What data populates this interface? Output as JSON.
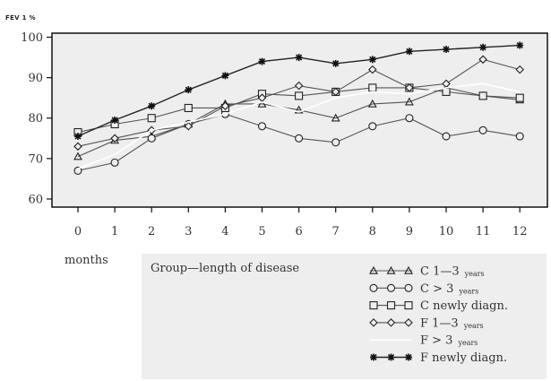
{
  "chart_data": {
    "type": "line",
    "ylabel": "FEV 1 %",
    "xlabel": "months",
    "categories": [
      "0",
      "1",
      "2",
      "3",
      "4",
      "5",
      "6",
      "7",
      "8",
      "9",
      "10",
      "11",
      "12"
    ],
    "y_ticks": [
      "60",
      "70",
      "80",
      "90",
      "100"
    ],
    "ylim": [
      58,
      101
    ],
    "grid": false,
    "legend_title": "Group—length of disease",
    "legend_position": "bottom-right",
    "series": [
      {
        "key": "c13",
        "name": "C 1—3",
        "name_main": "C 1—3",
        "name_sub": "years",
        "marker": "triangle",
        "values": [
          70.5,
          74.5,
          75.5,
          78.5,
          83.5,
          83.5,
          82,
          80,
          83.5,
          84,
          87.5,
          85.5,
          84.5
        ]
      },
      {
        "key": "cgt3",
        "name": "C > 3",
        "name_main": "C > 3",
        "name_sub": "years",
        "marker": "circle",
        "values": [
          67,
          69,
          75,
          78.5,
          81,
          78,
          75,
          74,
          78,
          80,
          75.5,
          77,
          75.5
        ]
      },
      {
        "key": "cnd",
        "name": "C newly diagn.",
        "name_main": "C newly diagn.",
        "name_sub": "",
        "marker": "square",
        "values": [
          76.5,
          78.5,
          80,
          82.5,
          82.5,
          86,
          85.5,
          86.5,
          87.5,
          87.5,
          86.5,
          85.5,
          85
        ]
      },
      {
        "key": "f13",
        "name": "F 1—3",
        "name_main": "F 1—3",
        "name_sub": "years",
        "marker": "diamond",
        "values": [
          73,
          75,
          77,
          78,
          83,
          85,
          88,
          86.5,
          92,
          87.5,
          88.5,
          94.5,
          92
        ]
      },
      {
        "key": "fgt3",
        "name": "F > 3",
        "name_main": "F > 3",
        "name_sub": "years",
        "marker": "none",
        "values": [
          67.5,
          71,
          77,
          79,
          81,
          84,
          81.5,
          85,
          86.5,
          86,
          87.5,
          88.5,
          86.5
        ]
      },
      {
        "key": "fnd",
        "name": "F newly diagn.",
        "name_main": "F newly diagn.",
        "name_sub": "",
        "marker": "star",
        "values": [
          75.5,
          79.5,
          83,
          87,
          90.5,
          94,
          95,
          93.5,
          94.5,
          96.5,
          97,
          97.5,
          98
        ]
      }
    ]
  }
}
